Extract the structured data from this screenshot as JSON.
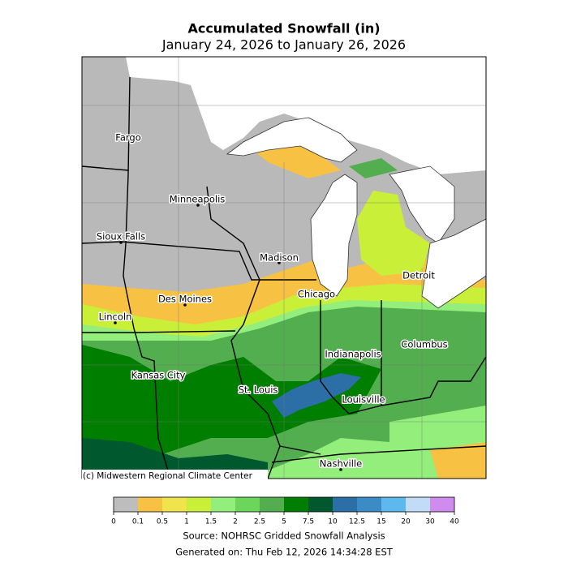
{
  "title": "Accumulated Snowfall (in)",
  "subtitle": "January 24, 2026 to January 26, 2026",
  "map": {
    "cities": [
      "Fargo",
      "Minneapolis",
      "Sioux Falls",
      "Madison",
      "Des Moines",
      "Chicago",
      "Detroit",
      "Lincoln",
      "Columbus",
      "Indianapolis",
      "Kansas City",
      "St. Louis",
      "Louisville",
      "Nashville"
    ],
    "credit": "(c) Midwestern Regional Climate Center"
  },
  "legend": {
    "bins": [
      0,
      0.1,
      0.5,
      1,
      1.5,
      2,
      2.5,
      5,
      7.5,
      10,
      12.5,
      15,
      20,
      30,
      40
    ],
    "colors": [
      "#bdbdbd",
      "#f7c244",
      "#efe44c",
      "#c9ef39",
      "#93ee7b",
      "#6cd65b",
      "#52ae4e",
      "#007e00",
      "#00582f",
      "#2c6fa7",
      "#3b8cc6",
      "#5db8ee",
      "#c2dcf7",
      "#cf8cee"
    ]
  },
  "source": "Source: NOHRSC Gridded Snowfall Analysis",
  "generated": "Generated on: Thu Feb 12, 2026 14:34:28 EST"
}
